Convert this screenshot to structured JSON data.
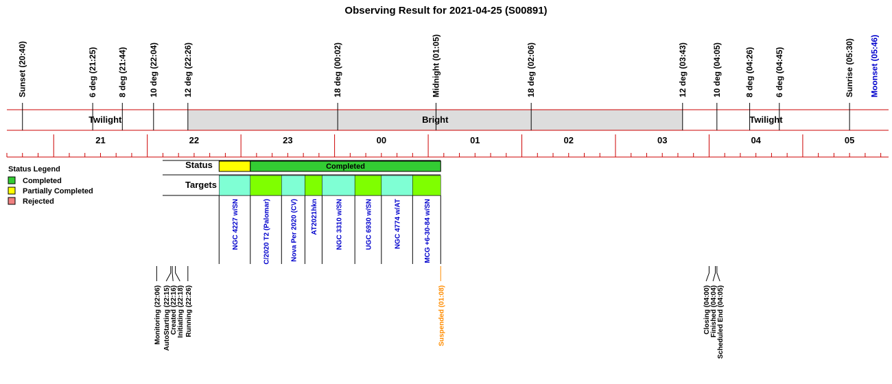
{
  "chart_data": {
    "type": "timeline",
    "title": "Observing Result for 2021-04-25 (S00891)",
    "time_axis": {
      "start": "20:30",
      "end": "05:55",
      "hour_labels": [
        "21",
        "22",
        "23",
        "00",
        "01",
        "02",
        "03",
        "04",
        "05"
      ]
    },
    "events": [
      {
        "label": "Sunset (20:40)",
        "time": "20:40",
        "color": "#000000"
      },
      {
        "label": "6 deg (21:25)",
        "time": "21:25",
        "color": "#000000"
      },
      {
        "label": "8 deg (21:44)",
        "time": "21:44",
        "color": "#000000"
      },
      {
        "label": "10 deg (22:04)",
        "time": "22:04",
        "color": "#000000"
      },
      {
        "label": "12 deg (22:26)",
        "time": "22:26",
        "color": "#000000"
      },
      {
        "label": "18 deg (00:02)",
        "time": "00:02",
        "color": "#000000"
      },
      {
        "label": "Midnight (01:05)",
        "time": "01:05",
        "color": "#000000"
      },
      {
        "label": "18 deg (02:06)",
        "time": "02:06",
        "color": "#000000"
      },
      {
        "label": "12 deg (03:43)",
        "time": "03:43",
        "color": "#000000"
      },
      {
        "label": "10 deg (04:05)",
        "time": "04:05",
        "color": "#000000"
      },
      {
        "label": "8 deg (04:26)",
        "time": "04:26",
        "color": "#000000"
      },
      {
        "label": "6 deg (04:45)",
        "time": "04:45",
        "color": "#000000"
      },
      {
        "label": "Sunrise (05:30)",
        "time": "05:30",
        "color": "#000000"
      },
      {
        "label": "Moonset (05:46)",
        "time": "05:46",
        "color": "#0000cc"
      }
    ],
    "sky_periods": [
      {
        "label": "Twilight",
        "start": "20:40",
        "end": "22:26",
        "fill": "#ffffff"
      },
      {
        "label": "Bright",
        "start": "22:26",
        "end": "03:43",
        "fill": "#dddddd"
      },
      {
        "label": "Twilight",
        "start": "03:43",
        "end": "05:30",
        "fill": "#ffffff"
      }
    ],
    "status_row_label": "Status",
    "status_segments": [
      {
        "status": "Partially Completed",
        "start": "22:46",
        "end": "23:06",
        "label": "",
        "color": "#ffff00"
      },
      {
        "status": "Completed",
        "start": "23:06",
        "end": "01:08",
        "label": "Completed",
        "color": "#33cc33"
      }
    ],
    "targets_row_label": "Targets",
    "targets": [
      {
        "name": "NGC 4227 w/SN",
        "start": "22:46",
        "end": "23:06",
        "color": "#7fffd4"
      },
      {
        "name": "C/2020 T2 (Palomar)",
        "start": "23:06",
        "end": "23:26",
        "color": "#7fff00"
      },
      {
        "name": "Nova Per 2020 (CV)",
        "start": "23:26",
        "end": "23:41",
        "color": "#7fffd4"
      },
      {
        "name": "AT2021hkn",
        "start": "23:41",
        "end": "23:52",
        "color": "#7fff00"
      },
      {
        "name": "NGC 3310 w/SN",
        "start": "23:52",
        "end": "00:13",
        "color": "#7fffd4"
      },
      {
        "name": "UGC 6930 w/SN",
        "start": "00:13",
        "end": "00:30",
        "color": "#7fff00"
      },
      {
        "name": "NGC 4774 w/AT",
        "start": "00:30",
        "end": "00:50",
        "color": "#7fffd4"
      },
      {
        "name": "MCG +6-30-84 w/SN",
        "start": "00:50",
        "end": "01:08",
        "color": "#7fff00"
      }
    ],
    "legend": {
      "title": "Status Legend",
      "items": [
        {
          "label": "Completed",
          "color": "#33cc33"
        },
        {
          "label": "Partially Completed",
          "color": "#ffff00"
        },
        {
          "label": "Rejected",
          "color": "#f08080"
        }
      ]
    },
    "status_events": [
      {
        "label": "Monitoring (22:06)",
        "time": "22:06",
        "color": "#000000"
      },
      {
        "label": "AutoStarting (22:15)",
        "time": "22:15",
        "color": "#000000"
      },
      {
        "label": "Created (22:16)",
        "time": "22:16",
        "color": "#000000"
      },
      {
        "label": "Initiating (22:18)",
        "time": "22:18",
        "color": "#000000"
      },
      {
        "label": "Running (22:26)",
        "time": "22:26",
        "color": "#000000"
      },
      {
        "label": "Suspended (01:08)",
        "time": "01:08",
        "color": "#ff8c00"
      },
      {
        "label": "Closing (04:00)",
        "time": "04:00",
        "color": "#000000"
      },
      {
        "label": "Finished (04:04)",
        "time": "04:04",
        "color": "#000000"
      },
      {
        "label": "Scheduled End (04:05)",
        "time": "04:05",
        "color": "#000000"
      }
    ]
  }
}
